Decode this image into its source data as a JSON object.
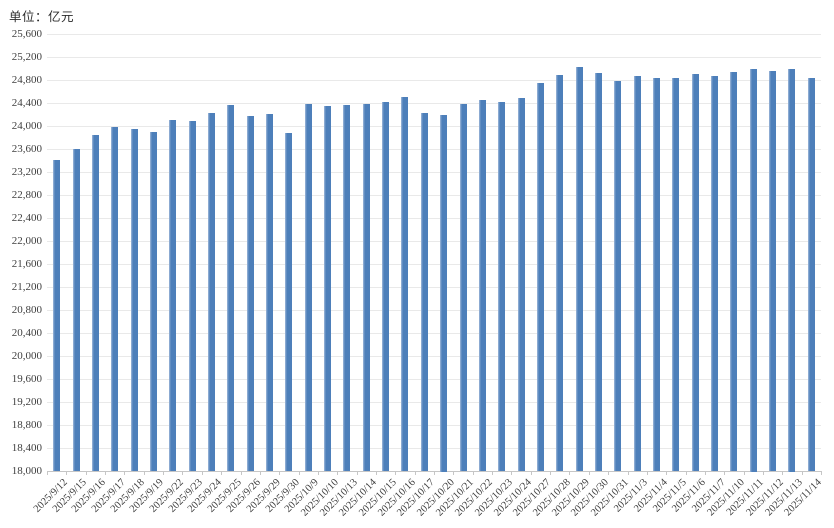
{
  "chart_data": {
    "type": "bar",
    "unit_label": "单位：亿元",
    "title": "",
    "xlabel": "",
    "ylabel": "亿元",
    "ylim": [
      18000,
      25600
    ],
    "ytick_step": 400,
    "grid": true,
    "legend": "none",
    "y_tick_labels": [
      "18,000",
      "18,400",
      "18,800",
      "19,200",
      "19,600",
      "20,000",
      "20,400",
      "20,800",
      "21,200",
      "21,600",
      "22,000",
      "22,400",
      "22,800",
      "23,200",
      "23,600",
      "24,000",
      "24,400",
      "24,800",
      "25,200",
      "25,600"
    ],
    "categories": [
      "2025/9/12",
      "2025/9/15",
      "2025/9/16",
      "2025/9/17",
      "2025/9/18",
      "2025/9/19",
      "2025/9/22",
      "2025/9/23",
      "2025/9/24",
      "2025/9/25",
      "2025/9/26",
      "2025/9/29",
      "2025/9/30",
      "2025/10/9",
      "2025/10/10",
      "2025/10/13",
      "2025/10/14",
      "2025/10/15",
      "2025/10/16",
      "2025/10/17",
      "2025/10/20",
      "2025/10/21",
      "2025/10/22",
      "2025/10/23",
      "2025/10/24",
      "2025/10/27",
      "2025/10/28",
      "2025/10/29",
      "2025/10/30",
      "2025/10/31",
      "2025/11/3",
      "2025/11/4",
      "2025/11/5",
      "2025/11/6",
      "2025/11/7",
      "2025/11/10",
      "2025/11/11",
      "2025/11/12",
      "2025/11/13",
      "2025/11/14"
    ],
    "values": [
      23410,
      23600,
      23850,
      23990,
      23950,
      23900,
      24100,
      24090,
      24230,
      24370,
      24170,
      24210,
      23870,
      24390,
      24340,
      24360,
      24390,
      24420,
      24500,
      24220,
      24200,
      24380,
      24450,
      24420,
      24490,
      24740,
      24880,
      25020,
      24920,
      24780,
      24870,
      24840,
      24840,
      24910,
      24870,
      24940,
      25000,
      24960,
      25000,
      24840
    ],
    "style": {
      "bar_color": "#4d7fba",
      "bar_highlight": "#a0b9da",
      "grid_color": "#e9e9e9",
      "axis_line_color": "#c6c6c6",
      "tick_color": "#c6c6c6",
      "label_color": "#3f3f3f"
    }
  }
}
